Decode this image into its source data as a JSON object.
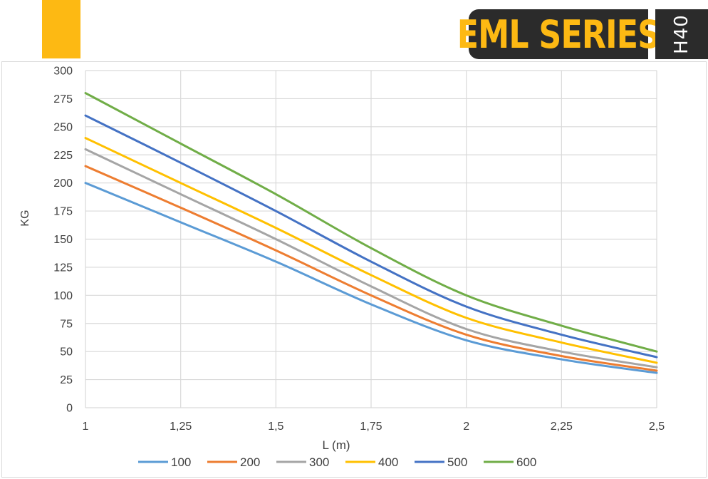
{
  "header": {
    "series_label": "EML SERIES",
    "model_label": "H40",
    "accent_color": "#FDB913",
    "badge_color": "#2b2b2b"
  },
  "chart_data": {
    "type": "line",
    "xlabel": "L (m)",
    "ylabel": "KG",
    "xlim": [
      1,
      2.5
    ],
    "ylim": [
      0,
      300
    ],
    "x_ticks": [
      "1",
      "1,25",
      "1,5",
      "1,75",
      "2",
      "2,25",
      "2,5"
    ],
    "y_ticks": [
      "0",
      "25",
      "50",
      "75",
      "100",
      "125",
      "150",
      "175",
      "200",
      "225",
      "250",
      "275",
      "300"
    ],
    "grid": true,
    "legend_position": "bottom",
    "x": [
      1,
      1.25,
      1.5,
      1.75,
      2,
      2.25,
      2.5
    ],
    "series": [
      {
        "name": "100",
        "color": "#5B9BD5",
        "values": [
          200,
          165,
          130,
          92,
          60,
          43,
          31
        ]
      },
      {
        "name": "200",
        "color": "#ED7D31",
        "values": [
          215,
          178,
          140,
          100,
          65,
          46,
          33
        ]
      },
      {
        "name": "300",
        "color": "#A5A5A5",
        "values": [
          230,
          190,
          150,
          108,
          70,
          50,
          36
        ]
      },
      {
        "name": "400",
        "color": "#FFC000",
        "values": [
          240,
          200,
          160,
          118,
          80,
          58,
          40
        ]
      },
      {
        "name": "500",
        "color": "#4472C4",
        "values": [
          260,
          218,
          175,
          130,
          90,
          65,
          45
        ]
      },
      {
        "name": "600",
        "color": "#70AD47",
        "values": [
          280,
          235,
          190,
          142,
          100,
          73,
          50
        ]
      }
    ]
  }
}
